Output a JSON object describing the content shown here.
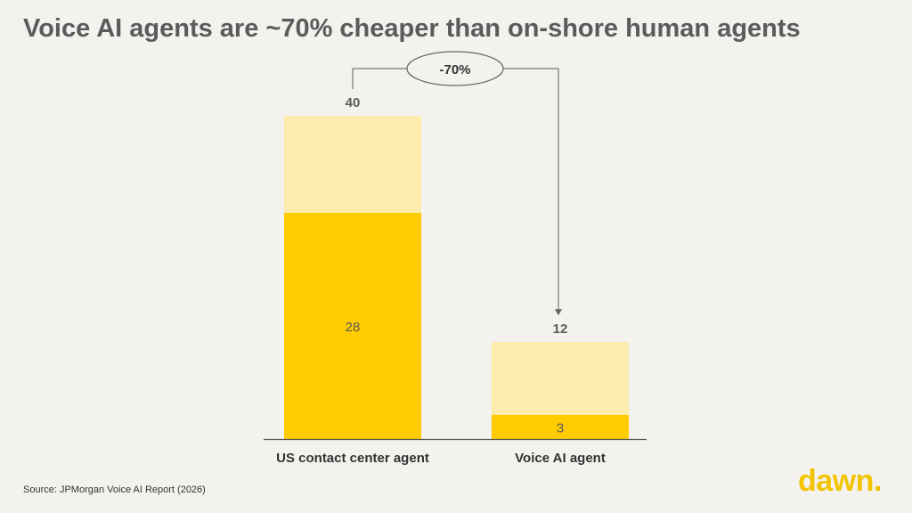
{
  "title": "Voice AI agents are ~70% cheaper than on-shore human agents",
  "source": "Source: JPMorgan Voice AI Report (2026)",
  "logo": "dawn.",
  "colors": {
    "background": "#f4f2ee",
    "base": "#ffcc00",
    "remainder": "#fdecab",
    "text": "#5b5b5b",
    "axis": "#555555",
    "logo": "#f2c400"
  },
  "chart_data": {
    "type": "bar",
    "stacked": true,
    "categories": [
      "US contact center agent",
      "Voice AI agent"
    ],
    "totals": [
      40,
      12
    ],
    "series": [
      {
        "name": "base",
        "values": [
          28,
          3
        ]
      },
      {
        "name": "remainder",
        "values": [
          12,
          9
        ]
      }
    ],
    "inner_labels": [
      "28",
      "3"
    ],
    "total_labels": [
      "40",
      "12"
    ],
    "annotation": {
      "label": "-70%",
      "from": 0,
      "to": 1
    },
    "ylim": [
      0,
      40
    ],
    "title": "Voice AI agents are ~70% cheaper than on-shore human agents",
    "xlabel": "",
    "ylabel": ""
  }
}
